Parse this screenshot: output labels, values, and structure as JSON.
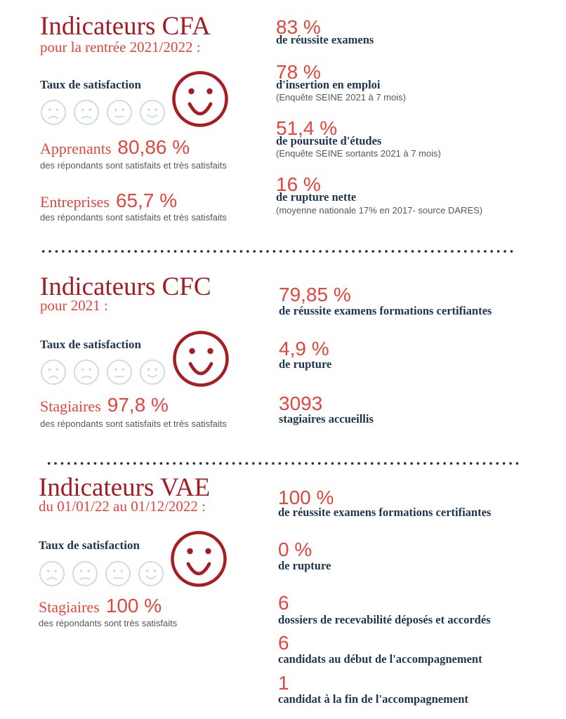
{
  "colors": {
    "title": "#a31c24",
    "accent": "#e2463d",
    "label": "#1e3550",
    "note": "#575757",
    "scale_face": "#cfdbe1",
    "highlight_face": "#a81d23",
    "divider": "#1e3550"
  },
  "icons": {
    "scale": [
      "very-dissatisfied-face-icon",
      "dissatisfied-face-icon",
      "neutral-face-icon",
      "satisfied-face-icon"
    ],
    "highlight": "very-satisfied-face-icon"
  },
  "cfa": {
    "title": "Indicateurs CFA",
    "subtitle": "pour la rentrée 2021/2022 :",
    "satisfaction_label": "Taux de satisfaction",
    "satisfaction": [
      {
        "group": "Apprenants",
        "value": "80,86 %",
        "note": "des répondants sont satisfaits et très satisfaits"
      },
      {
        "group": "Entreprises",
        "value": "65,7 %",
        "note": "des répondants sont satisfaits et très satisfaits"
      }
    ],
    "indicators": [
      {
        "value": "83 %",
        "label": "de réussite examens"
      },
      {
        "value": "78 %",
        "label": "d'insertion en emploi",
        "source": "(Enquête SEINE 2021 à 7 mois)"
      },
      {
        "value": "51,4 %",
        "label": "de poursuite d'études",
        "source": "(Enquête SEINE sortants 2021 à 7 mois)"
      },
      {
        "value": "16 %",
        "label": "de rupture nette",
        "source": "(moyenne nationale 17% en 2017- source DARES)"
      }
    ]
  },
  "cfc": {
    "title": "Indicateurs CFC",
    "subtitle": "pour 2021 :",
    "satisfaction_label": "Taux de satisfaction",
    "satisfaction": [
      {
        "group": "Stagiaires",
        "value": "97,8 %",
        "note": "des répondants sont satisfaits et très satisfaits"
      }
    ],
    "indicators": [
      {
        "value": "79,85 %",
        "label": "de réussite examens formations certifiantes"
      },
      {
        "value": "4,9 %",
        "label": "de rupture"
      },
      {
        "value": "3093",
        "label": "stagiaires accueillis"
      }
    ]
  },
  "vae": {
    "title": "Indicateurs VAE",
    "subtitle": "du 01/01/22 au 01/12/2022 :",
    "satisfaction_label": "Taux de satisfaction",
    "satisfaction": [
      {
        "group": "Stagiaires",
        "value": "100 %",
        "note": "des répondants sont très satisfaits"
      }
    ],
    "indicators": [
      {
        "value": "100 %",
        "label": "de réussite examens formations certifiantes"
      },
      {
        "value": "0 %",
        "label": "de rupture"
      },
      {
        "value": "6",
        "label": "dossiers de recevabilité déposés et accordés"
      },
      {
        "value": "6",
        "label": "candidats au début de l'accompagnement"
      },
      {
        "value": "1",
        "label": "candidat à la fin de l'accompagnement"
      }
    ]
  }
}
